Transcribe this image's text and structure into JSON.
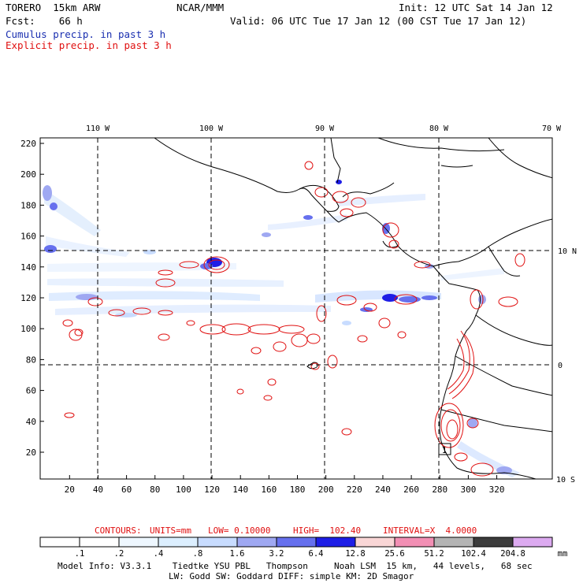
{
  "header": {
    "model": "TORERO  15km ARW",
    "org": "NCAR/MMM",
    "init": "Init: 12 UTC Sat 14 Jan 12",
    "fcst": "Fcst:    66 h",
    "valid": "Valid: 06 UTC Tue 17 Jan 12 (00 CST Tue 17 Jan 12)",
    "field1": "Cumulus precip. in past 3 h",
    "field2": "Explicit precip. in past 3 h"
  },
  "map": {
    "lon_labels": [
      "110 W",
      "100 W",
      "90 W",
      "80 W",
      "70 W"
    ],
    "lat_labels": [
      "10 N",
      "0",
      "10 S"
    ],
    "y_ticks": [
      "220",
      "200",
      "180",
      "160",
      "140",
      "120",
      "100",
      "80",
      "60",
      "40",
      "20"
    ],
    "x_ticks": [
      "20",
      "40",
      "60",
      "80",
      "100",
      "120",
      "140",
      "160",
      "180",
      "200",
      "220",
      "240",
      "260",
      "280",
      "300",
      "320"
    ],
    "box_label": "1"
  },
  "contours": {
    "prefix": "CONTOURS:",
    "units": "UNITS=mm",
    "low": "LOW= 0.10000",
    "high": "HIGH=  102.40",
    "interval": "INTERVAL=X  4.0000"
  },
  "colorbar": {
    "unit": "mm",
    "labels": [
      ".1",
      ".2",
      ".4",
      ".8",
      "1.6",
      "3.2",
      "6.4",
      "12.8",
      "25.6",
      "51.2",
      "102.4",
      "204.8"
    ],
    "colors": [
      "#ffffff",
      "#ffffff",
      "#eef7ff",
      "#dcefff",
      "#c8dcff",
      "#9fa8f2",
      "#6670ee",
      "#1e1ee6",
      "#f9d6d6",
      "#f28fb4",
      "#b4b4b4",
      "#3c3c3c",
      "#dcaaf0"
    ]
  },
  "footer": {
    "line1": "Model Info: V3.3.1    Tiedtke YSU PBL   Thompson     Noah LSM  15 km,   44 levels,   68 sec",
    "line2": "LW: Godd SW: Goddard DIFF: simple KM: 2D Smagor"
  }
}
